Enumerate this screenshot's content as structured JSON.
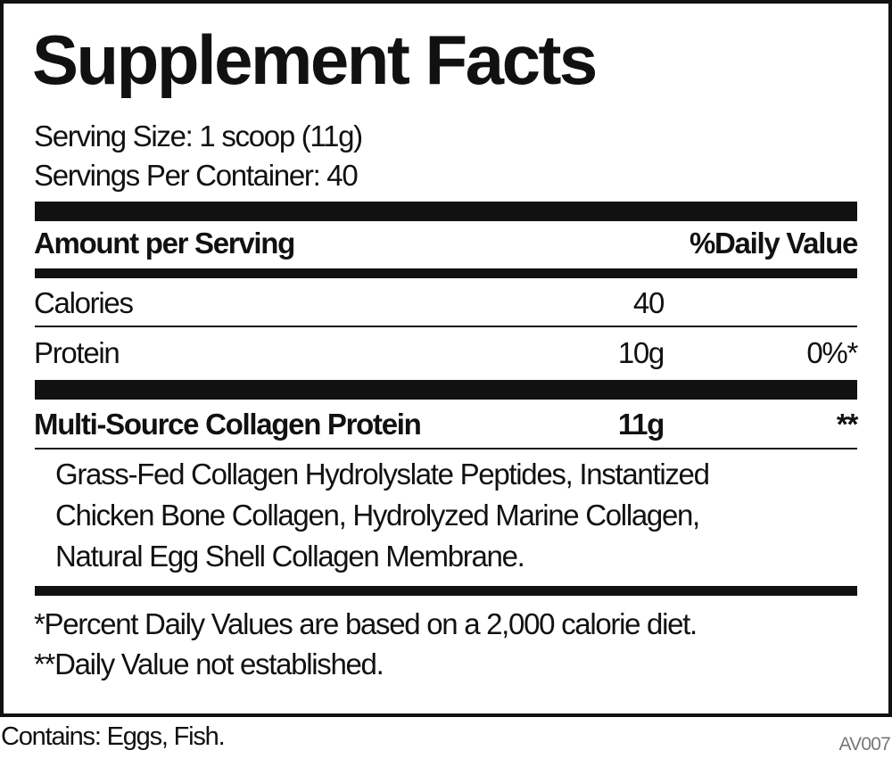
{
  "title": "Supplement Facts",
  "serving_size": "Serving Size: 1 scoop (11g)",
  "servings_per_container": "Servings Per Container: 40",
  "header": {
    "amount": "Amount per Serving",
    "daily_value": "%Daily Value"
  },
  "rows": [
    {
      "name": "Calories",
      "amount": "40",
      "dv": ""
    },
    {
      "name": "Protein",
      "amount": "10g",
      "dv": "0%*"
    }
  ],
  "blend": {
    "name": "Multi-Source Collagen Protein",
    "amount": "11g",
    "dv": "**",
    "ingredients": [
      "Grass-Fed Collagen Hydrolyslate Peptides, Instantized",
      "Chicken Bone Collagen, Hydrolyzed Marine Collagen,",
      "Natural Egg Shell Collagen Membrane."
    ]
  },
  "footnotes": [
    "*Percent Daily Values are based on a 2,000 calorie diet.",
    "**Daily Value not established."
  ],
  "contains": "Contains: Eggs, Fish.",
  "code": "AV007"
}
